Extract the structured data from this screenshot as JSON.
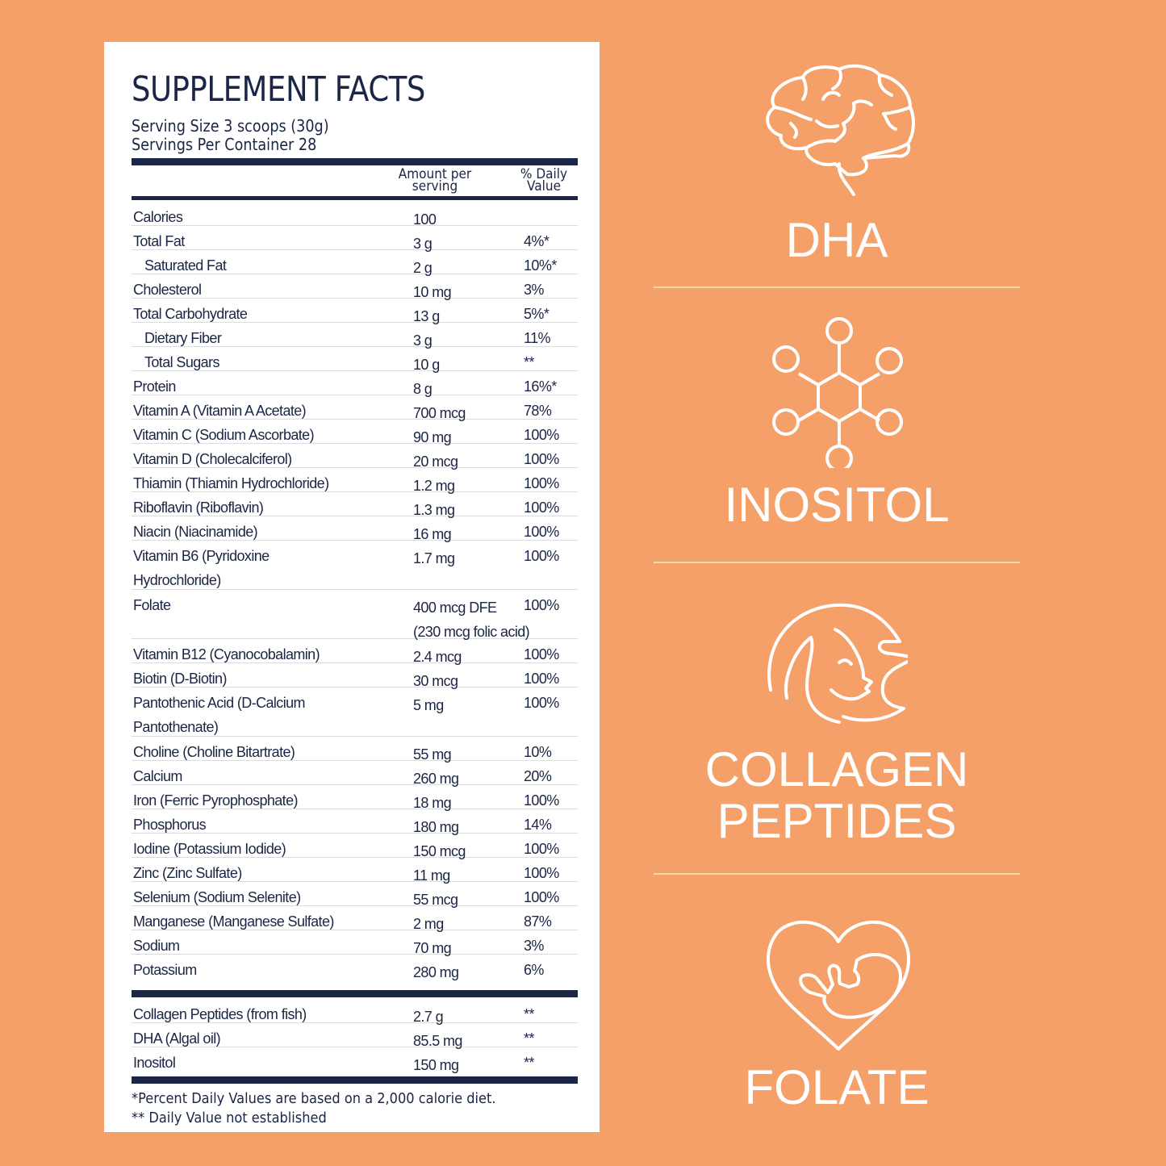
{
  "facts": {
    "title": "SUPPLEMENT FACTS",
    "serving_size": "Serving Size 3 scoops (30g)",
    "servings_per_container": "Servings Per Container 28",
    "col_amount": [
      "Amount per",
      "serving"
    ],
    "col_dv": [
      "% Daily",
      "Value"
    ],
    "rows": [
      {
        "name": "Calories",
        "amount": "100",
        "dv": "",
        "indent": false
      },
      {
        "name": "Total Fat",
        "amount": "3 g",
        "dv": "4%*",
        "indent": false
      },
      {
        "name": "Saturated Fat",
        "amount": "2 g",
        "dv": "10%*",
        "indent": true
      },
      {
        "name": "Cholesterol",
        "amount": "10 mg",
        "dv": "3%",
        "indent": false
      },
      {
        "name": "Total Carbohydrate",
        "amount": "13 g",
        "dv": "5%*",
        "indent": false
      },
      {
        "name": "Dietary Fiber",
        "amount": "3 g",
        "dv": "11%",
        "indent": true
      },
      {
        "name": "Total Sugars",
        "amount": "10 g",
        "dv": "**",
        "indent": true
      },
      {
        "name": "Protein",
        "amount": "8 g",
        "dv": "16%*",
        "indent": false
      },
      {
        "name": "Vitamin A (Vitamin A Acetate)",
        "amount": "700 mcg",
        "dv": "78%",
        "indent": false
      },
      {
        "name": "Vitamin C (Sodium Ascorbate)",
        "amount": "90 mg",
        "dv": "100%",
        "indent": false
      },
      {
        "name": "Vitamin D (Cholecalciferol)",
        "amount": "20 mcg",
        "dv": "100%",
        "indent": false
      },
      {
        "name": "Thiamin (Thiamin Hydrochloride)",
        "amount": "1.2 mg",
        "dv": "100%",
        "indent": false
      },
      {
        "name": "Riboflavin (Riboflavin)",
        "amount": "1.3 mg",
        "dv": "100%",
        "indent": false
      },
      {
        "name": "Niacin (Niacinamide)",
        "amount": "16 mg",
        "dv": "100%",
        "indent": false
      },
      {
        "name": "Vitamin B6 (Pyridoxine",
        "name2": "Hydrochloride)",
        "amount": "1.7 mg",
        "dv": "100%",
        "indent": false
      },
      {
        "name": "Folate",
        "amount": "400 mcg DFE",
        "amount2": "(230 mcg folic acid)",
        "dv": "100%",
        "indent": false
      },
      {
        "name": "Vitamin B12 (Cyanocobalamin)",
        "amount": "2.4 mcg",
        "dv": "100%",
        "indent": false
      },
      {
        "name": "Biotin (D-Biotin)",
        "amount": "30 mcg",
        "dv": "100%",
        "indent": false
      },
      {
        "name": "Pantothenic Acid (D-Calcium",
        "name2": "Pantothenate)",
        "amount": "5 mg",
        "dv": "100%",
        "indent": false
      },
      {
        "name": "Choline (Choline Bitartrate)",
        "amount": "55 mg",
        "dv": "10%",
        "indent": false
      },
      {
        "name": "Calcium",
        "amount": "260 mg",
        "dv": "20%",
        "indent": false
      },
      {
        "name": "Iron (Ferric Pyrophosphate)",
        "amount": "18 mg",
        "dv": "100%",
        "indent": false
      },
      {
        "name": "Phosphorus",
        "amount": "180 mg",
        "dv": "14%",
        "indent": false
      },
      {
        "name": "Iodine (Potassium Iodide)",
        "amount": "150 mcg",
        "dv": "100%",
        "indent": false
      },
      {
        "name": "Zinc (Zinc Sulfate)",
        "amount": "11 mg",
        "dv": "100%",
        "indent": false
      },
      {
        "name": "Selenium (Sodium Selenite)",
        "amount": "55 mcg",
        "dv": "100%",
        "indent": false
      },
      {
        "name": "Manganese (Manganese Sulfate)",
        "amount": "2 mg",
        "dv": "87%",
        "indent": false
      },
      {
        "name": "Sodium",
        "amount": "70 mg",
        "dv": "3%",
        "indent": false
      },
      {
        "name": "Potassium",
        "amount": "280 mg",
        "dv": "6%",
        "indent": false
      }
    ],
    "other_rows": [
      {
        "name": "Collagen Peptides (from fish)",
        "amount": "2.7 g",
        "dv": "**"
      },
      {
        "name": "DHA (Algal oil)",
        "amount": "85.5 mg",
        "dv": "**"
      },
      {
        "name": "Inositol",
        "amount": "150 mg",
        "dv": "**"
      }
    ],
    "footnote1": "*Percent Daily Values are based on a 2,000 calorie diet.",
    "footnote2": "** Daily Value not established"
  },
  "features": [
    {
      "label": "DHA",
      "icon": "brain-icon"
    },
    {
      "label": "INOSITOL",
      "icon": "molecule-icon"
    },
    {
      "label": "COLLAGEN",
      "label2": "PEPTIDES",
      "icon": "woman-profile-icon"
    },
    {
      "label": "FOLATE",
      "icon": "heart-baby-icon"
    }
  ],
  "colors": {
    "background": "#f5a069",
    "navy": "#1b2545",
    "divider": "#f3d9a6",
    "icon": "#ffffff"
  }
}
